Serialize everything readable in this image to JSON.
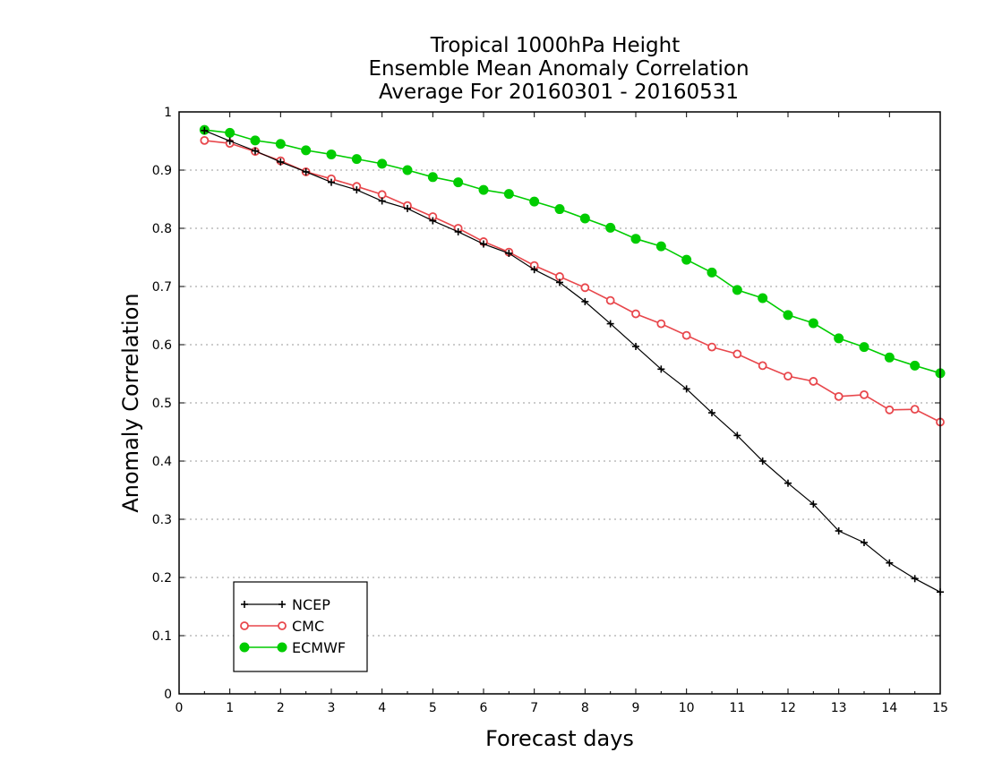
{
  "chart_data": {
    "type": "line",
    "title_lines": [
      "Tropical 1000hPa Height",
      "Ensemble Mean Anomaly Correlation",
      "Average For 20160301 - 20160531"
    ],
    "xlabel": "Forecast days",
    "ylabel": "Anomaly Correlation",
    "xlim": [
      0,
      15
    ],
    "ylim": [
      0,
      1
    ],
    "xticks": [
      0,
      1,
      2,
      3,
      4,
      5,
      6,
      7,
      8,
      9,
      10,
      11,
      12,
      13,
      14,
      15
    ],
    "yticks": [
      0,
      0.1,
      0.2,
      0.3,
      0.4,
      0.5,
      0.6,
      0.7,
      0.8,
      0.9,
      1
    ],
    "ytick_labels": [
      "0",
      "0.1",
      "0.2",
      "0.3",
      "0.4",
      "0.5",
      "0.6",
      "0.7",
      "0.8",
      "0.9",
      "1"
    ],
    "grid": true,
    "legend_position": "bottom-left",
    "x": [
      0.5,
      1,
      1.5,
      2,
      2.5,
      3,
      3.5,
      4,
      4.5,
      5,
      5.5,
      6,
      6.5,
      7,
      7.5,
      8,
      8.5,
      9,
      9.5,
      10,
      10.5,
      11,
      11.5,
      12,
      12.5,
      13,
      13.5,
      14,
      14.5,
      15
    ],
    "series": [
      {
        "name": "NCEP",
        "color": "#000000",
        "marker": "plus",
        "values": [
          0.968,
          0.95,
          0.933,
          0.914,
          0.897,
          0.879,
          0.866,
          0.847,
          0.834,
          0.813,
          0.794,
          0.773,
          0.757,
          0.729,
          0.707,
          0.674,
          0.636,
          0.597,
          0.558,
          0.524,
          0.483,
          0.444,
          0.4,
          0.362,
          0.326,
          0.28,
          0.26,
          0.225,
          0.198,
          0.175
        ]
      },
      {
        "name": "CMC",
        "color": "#e8474c",
        "marker": "open-circle",
        "values": [
          0.951,
          0.946,
          0.932,
          0.916,
          0.897,
          0.885,
          0.872,
          0.858,
          0.839,
          0.82,
          0.8,
          0.777,
          0.759,
          0.736,
          0.717,
          0.698,
          0.676,
          0.653,
          0.636,
          0.616,
          0.596,
          0.584,
          0.564,
          0.546,
          0.537,
          0.511,
          0.514,
          0.488,
          0.489,
          0.467
        ]
      },
      {
        "name": "ECMWF",
        "color": "#00cc00",
        "marker": "filled-circle",
        "values": [
          0.969,
          0.964,
          0.951,
          0.945,
          0.934,
          0.927,
          0.919,
          0.911,
          0.9,
          0.888,
          0.879,
          0.866,
          0.859,
          0.846,
          0.833,
          0.817,
          0.801,
          0.782,
          0.769,
          0.746,
          0.724,
          0.694,
          0.68,
          0.651,
          0.637,
          0.611,
          0.596,
          0.578,
          0.564,
          0.551
        ]
      }
    ]
  }
}
